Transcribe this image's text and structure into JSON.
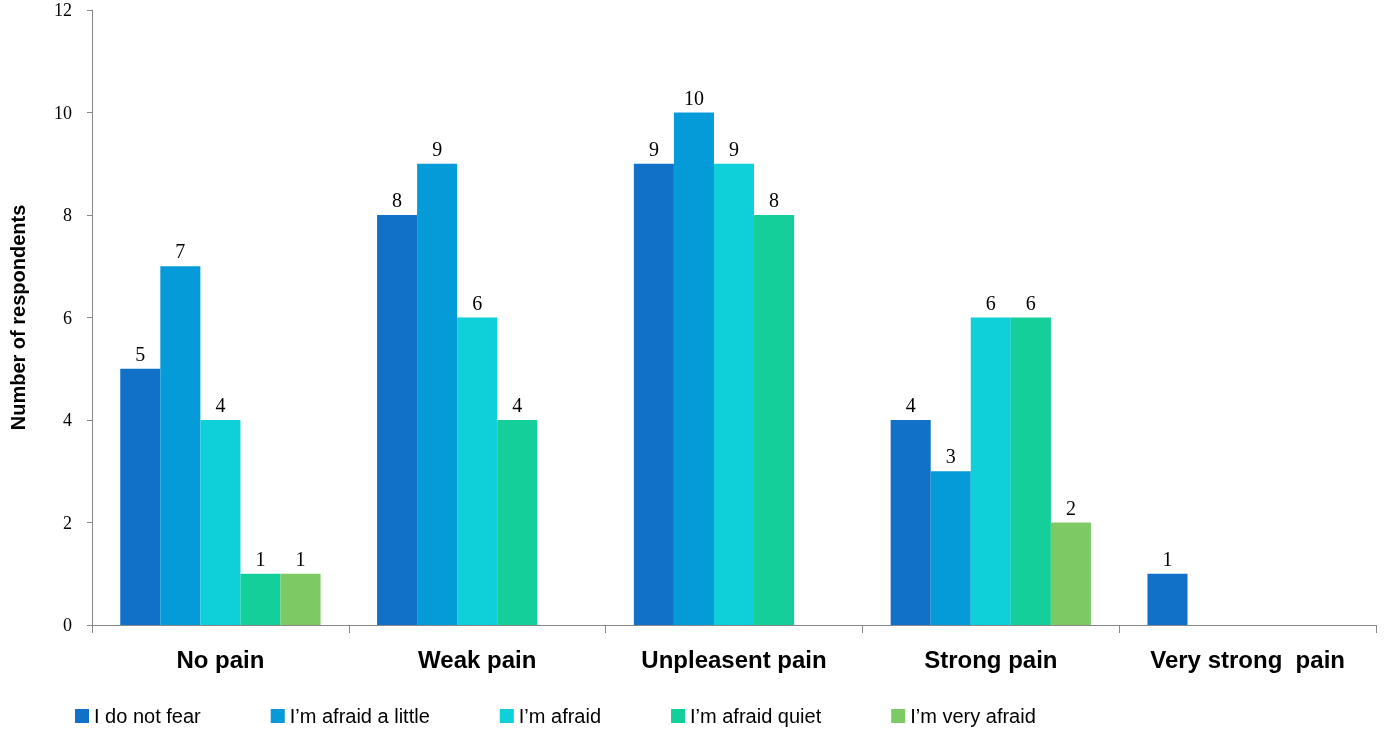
{
  "chart_data": {
    "type": "bar",
    "ylabel": "Number of respondents",
    "categories": [
      "No pain",
      "Weak pain",
      "Unpleasent pain",
      "Strong pain",
      "Very strong  pain"
    ],
    "series": [
      {
        "name": "I do not fear",
        "color": "#1170c8",
        "values": [
          5,
          8,
          9,
          4,
          1
        ]
      },
      {
        "name": "I’m afraid a little",
        "color": "#059bd8",
        "values": [
          7,
          9,
          10,
          3,
          null
        ]
      },
      {
        "name": "I’m afraid",
        "color": "#0fcfd8",
        "values": [
          4,
          6,
          9,
          6,
          null
        ]
      },
      {
        "name": "I’m afraid quiet",
        "color": "#14cf9a",
        "values": [
          1,
          4,
          8,
          6,
          null
        ]
      },
      {
        "name": "I’m very afraid",
        "color": "#7dc964",
        "values": [
          1,
          null,
          null,
          2,
          null
        ]
      }
    ],
    "ylim": [
      0,
      12
    ],
    "yticks": [
      0,
      2,
      4,
      6,
      8,
      10,
      12
    ],
    "grid": false,
    "legend": "bottom",
    "data_labels": true
  }
}
